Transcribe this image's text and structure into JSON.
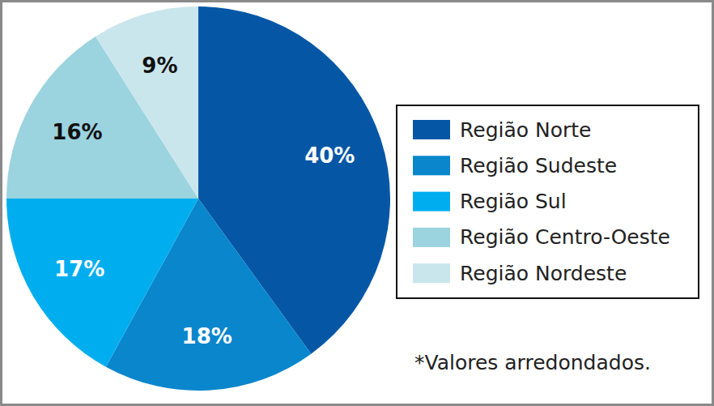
{
  "chart_data": {
    "type": "pie",
    "categories": [
      "Região Norte",
      "Região Sudeste",
      "Região Sul",
      "Região Centro-Oeste",
      "Região Nordeste"
    ],
    "values": [
      40,
      18,
      17,
      16,
      9
    ],
    "value_labels": [
      "40%",
      "18%",
      "17%",
      "16%",
      "9%"
    ],
    "colors": [
      "#0557a6",
      "#0a86cc",
      "#00aeef",
      "#9bd3df",
      "#c9e6ec"
    ],
    "data_labels": true,
    "legend": "right",
    "annotations": [
      "*Valores arredondados."
    ]
  }
}
